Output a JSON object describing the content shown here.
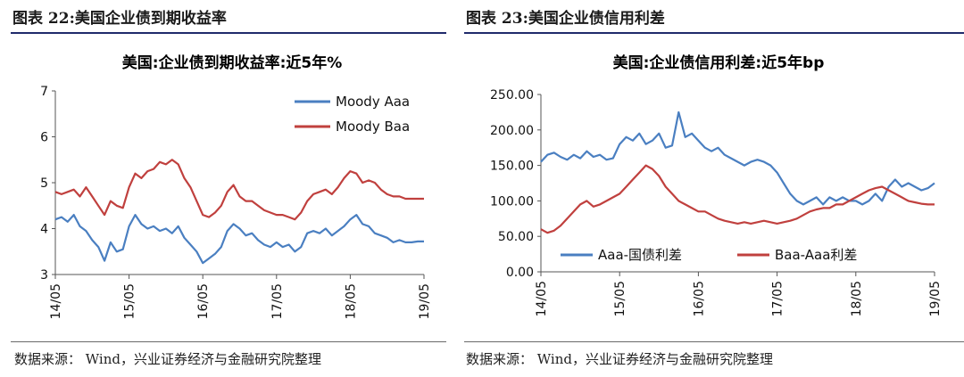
{
  "panels": [
    {
      "figure_caption": "图表 22:美国企业债到期收益率",
      "source": "数据来源： Wind，兴业证券经济与金融研究院整理"
    },
    {
      "figure_caption": "图表 23:美国企业债信用利差",
      "source": "数据来源： Wind，兴业证券经济与金融研究院整理"
    }
  ],
  "chart_data": [
    {
      "type": "line",
      "title": "美国:企业债到期收益率:近5年%",
      "xlabel": "",
      "ylabel": "",
      "x_ticks": [
        "14/05",
        "15/05",
        "16/05",
        "17/05",
        "18/05",
        "19/05"
      ],
      "y_ticks": [
        "3",
        "4",
        "5",
        "6",
        "7"
      ],
      "xlim": [
        0,
        60
      ],
      "ylim": [
        3,
        7
      ],
      "grid": false,
      "legend_position": "top-right",
      "series": [
        {
          "name": "Moody Aaa",
          "color": "#4a7fc1",
          "x": [
            0,
            1,
            2,
            3,
            4,
            5,
            6,
            7,
            8,
            9,
            10,
            11,
            12,
            13,
            14,
            15,
            16,
            17,
            18,
            19,
            20,
            21,
            22,
            23,
            24,
            25,
            26,
            27,
            28,
            29,
            30,
            31,
            32,
            33,
            34,
            35,
            36,
            37,
            38,
            39,
            40,
            41,
            42,
            43,
            44,
            45,
            46,
            47,
            48,
            49,
            50,
            51,
            52,
            53,
            54,
            55,
            56,
            57,
            58,
            59,
            60
          ],
          "values": [
            4.2,
            4.25,
            4.15,
            4.3,
            4.05,
            3.95,
            3.75,
            3.6,
            3.3,
            3.7,
            3.5,
            3.55,
            4.05,
            4.3,
            4.1,
            4.0,
            4.05,
            3.95,
            4.0,
            3.9,
            4.05,
            3.8,
            3.65,
            3.5,
            3.25,
            3.35,
            3.45,
            3.6,
            3.95,
            4.1,
            4.0,
            3.85,
            3.9,
            3.75,
            3.65,
            3.6,
            3.7,
            3.6,
            3.65,
            3.5,
            3.6,
            3.9,
            3.95,
            3.9,
            4.0,
            3.85,
            3.95,
            4.05,
            4.2,
            4.3,
            4.1,
            4.05,
            3.9,
            3.85,
            3.8,
            3.7,
            3.75,
            3.7,
            3.7,
            3.72,
            3.72
          ]
        },
        {
          "name": "Moody Baa",
          "color": "#c0403e",
          "x": [
            0,
            1,
            2,
            3,
            4,
            5,
            6,
            7,
            8,
            9,
            10,
            11,
            12,
            13,
            14,
            15,
            16,
            17,
            18,
            19,
            20,
            21,
            22,
            23,
            24,
            25,
            26,
            27,
            28,
            29,
            30,
            31,
            32,
            33,
            34,
            35,
            36,
            37,
            38,
            39,
            40,
            41,
            42,
            43,
            44,
            45,
            46,
            47,
            48,
            49,
            50,
            51,
            52,
            53,
            54,
            55,
            56,
            57,
            58,
            59,
            60
          ],
          "values": [
            4.8,
            4.75,
            4.8,
            4.85,
            4.7,
            4.9,
            4.7,
            4.5,
            4.3,
            4.6,
            4.5,
            4.45,
            4.9,
            5.2,
            5.1,
            5.25,
            5.3,
            5.45,
            5.4,
            5.5,
            5.4,
            5.1,
            4.9,
            4.6,
            4.3,
            4.25,
            4.35,
            4.5,
            4.8,
            4.95,
            4.7,
            4.6,
            4.6,
            4.5,
            4.4,
            4.35,
            4.3,
            4.3,
            4.25,
            4.2,
            4.35,
            4.6,
            4.75,
            4.8,
            4.85,
            4.75,
            4.9,
            5.1,
            5.25,
            5.2,
            5.0,
            5.05,
            5.0,
            4.85,
            4.75,
            4.7,
            4.7,
            4.65,
            4.65,
            4.65,
            4.65
          ]
        }
      ]
    },
    {
      "type": "line",
      "title": "美国:企业债信用利差:近5年bp",
      "xlabel": "",
      "ylabel": "",
      "x_ticks": [
        "14/05",
        "15/05",
        "16/05",
        "17/05",
        "18/05",
        "19/05"
      ],
      "y_ticks": [
        "0.00",
        "50.00",
        "100.00",
        "150.00",
        "200.00",
        "250.00"
      ],
      "xlim": [
        0,
        60
      ],
      "ylim": [
        0,
        250
      ],
      "grid": false,
      "legend_position": "bottom",
      "series": [
        {
          "name": "Aaa-国债利差",
          "color": "#4a7fc1",
          "x": [
            0,
            1,
            2,
            3,
            4,
            5,
            6,
            7,
            8,
            9,
            10,
            11,
            12,
            13,
            14,
            15,
            16,
            17,
            18,
            19,
            20,
            21,
            22,
            23,
            24,
            25,
            26,
            27,
            28,
            29,
            30,
            31,
            32,
            33,
            34,
            35,
            36,
            37,
            38,
            39,
            40,
            41,
            42,
            43,
            44,
            45,
            46,
            47,
            48,
            49,
            50,
            51,
            52,
            53,
            54,
            55,
            56,
            57,
            58,
            59,
            60
          ],
          "values": [
            155,
            165,
            168,
            162,
            158,
            165,
            160,
            170,
            162,
            165,
            158,
            160,
            180,
            190,
            185,
            195,
            180,
            185,
            195,
            175,
            178,
            225,
            190,
            195,
            185,
            175,
            170,
            175,
            165,
            160,
            155,
            150,
            155,
            158,
            155,
            150,
            140,
            125,
            110,
            100,
            95,
            100,
            105,
            95,
            105,
            100,
            105,
            100,
            100,
            95,
            100,
            110,
            100,
            120,
            130,
            120,
            125,
            120,
            115,
            118,
            125
          ]
        },
        {
          "name": "Baa-Aaa利差",
          "color": "#c0403e",
          "x": [
            0,
            1,
            2,
            3,
            4,
            5,
            6,
            7,
            8,
            9,
            10,
            11,
            12,
            13,
            14,
            15,
            16,
            17,
            18,
            19,
            20,
            21,
            22,
            23,
            24,
            25,
            26,
            27,
            28,
            29,
            30,
            31,
            32,
            33,
            34,
            35,
            36,
            37,
            38,
            39,
            40,
            41,
            42,
            43,
            44,
            45,
            46,
            47,
            48,
            49,
            50,
            51,
            52,
            53,
            54,
            55,
            56,
            57,
            58,
            59,
            60
          ],
          "values": [
            60,
            55,
            58,
            65,
            75,
            85,
            95,
            100,
            92,
            95,
            100,
            105,
            110,
            120,
            130,
            140,
            150,
            145,
            135,
            120,
            110,
            100,
            95,
            90,
            85,
            85,
            80,
            75,
            72,
            70,
            68,
            70,
            68,
            70,
            72,
            70,
            68,
            70,
            72,
            75,
            80,
            85,
            88,
            90,
            90,
            95,
            95,
            100,
            105,
            110,
            115,
            118,
            120,
            115,
            110,
            105,
            100,
            98,
            96,
            95,
            95
          ]
        }
      ]
    }
  ]
}
